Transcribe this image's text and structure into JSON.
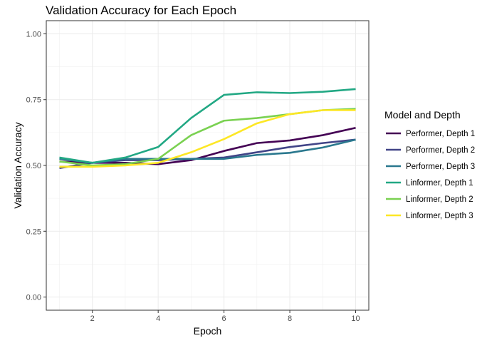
{
  "chart_data": {
    "type": "line",
    "title": "Validation Accuracy for Each Epoch",
    "xlabel": "Epoch",
    "ylabel": "Validation Accuracy",
    "xlim": [
      0.6,
      10.4
    ],
    "ylim": [
      -0.05,
      1.05
    ],
    "x_ticks": [
      2,
      4,
      6,
      8,
      10
    ],
    "x_tick_labels": [
      "2",
      "4",
      "6",
      "8",
      "10"
    ],
    "y_ticks": [
      0,
      0.25,
      0.5,
      0.75,
      1
    ],
    "y_tick_labels": [
      "0.00",
      "0.25",
      "0.50",
      "0.75",
      "1.00"
    ],
    "grid": true,
    "legend": {
      "title": "Model and Depth",
      "position": "right"
    },
    "x": [
      1,
      2,
      3,
      4,
      5,
      6,
      7,
      8,
      9,
      10
    ],
    "series": [
      {
        "name": "Performer, Depth 1",
        "color": "#440154",
        "values": [
          0.515,
          0.51,
          0.51,
          0.505,
          0.52,
          0.555,
          0.585,
          0.595,
          0.615,
          0.643
        ]
      },
      {
        "name": "Performer, Depth 2",
        "color": "#414487",
        "values": [
          0.49,
          0.51,
          0.52,
          0.52,
          0.525,
          0.53,
          0.55,
          0.57,
          0.585,
          0.598
        ]
      },
      {
        "name": "Performer, Depth 3",
        "color": "#2A788E",
        "values": [
          0.525,
          0.51,
          0.525,
          0.525,
          0.525,
          0.525,
          0.54,
          0.548,
          0.568,
          0.598
        ]
      },
      {
        "name": "Linformer, Depth 1",
        "color": "#22A884",
        "values": [
          0.53,
          0.51,
          0.53,
          0.57,
          0.68,
          0.768,
          0.778,
          0.775,
          0.78,
          0.79
        ]
      },
      {
        "name": "Linformer, Depth 2",
        "color": "#7AD151",
        "values": [
          0.515,
          0.5,
          0.505,
          0.525,
          0.615,
          0.67,
          0.68,
          0.695,
          0.71,
          0.715
        ]
      },
      {
        "name": "Linformer, Depth 3",
        "color": "#FDE725",
        "values": [
          0.495,
          0.495,
          0.5,
          0.51,
          0.55,
          0.6,
          0.66,
          0.695,
          0.71,
          0.71
        ]
      }
    ]
  }
}
